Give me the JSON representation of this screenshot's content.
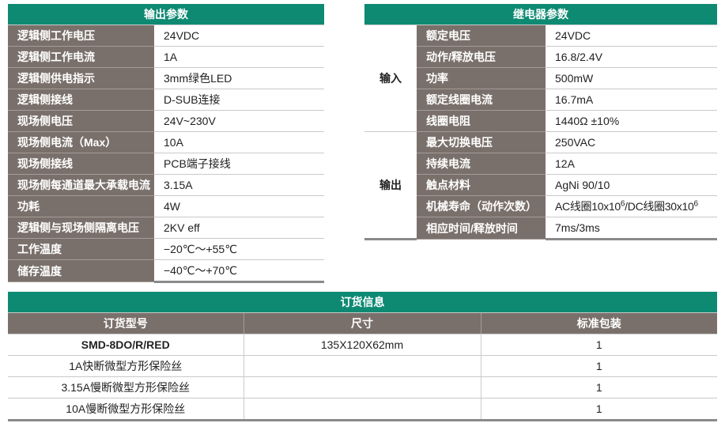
{
  "output_params": {
    "title": "输出参数",
    "rows": [
      {
        "label": "逻辑侧工作电压",
        "value": "24VDC"
      },
      {
        "label": "逻辑侧工作电流",
        "value": "1A"
      },
      {
        "label": "逻辑侧供电指示",
        "value": "3mm绿色LED"
      },
      {
        "label": "逻辑侧接线",
        "value": "D-SUB连接"
      },
      {
        "label": "现场侧电压",
        "value": "24V~230V"
      },
      {
        "label": "现场侧电流（Max）",
        "value": "10A"
      },
      {
        "label": "现场侧接线",
        "value": "PCB端子接线"
      },
      {
        "label": "现场侧每通道最大承载电流",
        "value": "3.15A"
      },
      {
        "label": "功耗",
        "value": "4W"
      },
      {
        "label": "逻辑侧与现场侧隔离电压",
        "value": "2KV eff"
      },
      {
        "label": "工作温度",
        "value": "−20℃～+55℃"
      },
      {
        "label": "储存温度",
        "value": "−40℃～+70℃"
      }
    ]
  },
  "relay_params": {
    "title": "继电器参数",
    "groups": [
      {
        "name": "输入",
        "rows": [
          {
            "label": "额定电压",
            "value": "24VDC"
          },
          {
            "label": "动作/释放电压",
            "value": "16.8/2.4V"
          },
          {
            "label": "功率",
            "value": "500mW"
          },
          {
            "label": "额定线圈电流",
            "value": "16.7mA"
          },
          {
            "label": "线圈电阻",
            "value": "1440Ω ±10%"
          }
        ]
      },
      {
        "name": "输出",
        "rows": [
          {
            "label": "最大切换电压",
            "value": "250VAC"
          },
          {
            "label": "持续电流",
            "value": "12A"
          },
          {
            "label": "触点材料",
            "value": "AgNi 90/10"
          },
          {
            "label": "机械寿命（动作次数）",
            "value_parts": [
              "AC线圈10x10",
              "6",
              "/DC线圈30x10",
              "6"
            ]
          },
          {
            "label": "相应时间/释放时间",
            "value": "7ms/3ms"
          }
        ]
      }
    ]
  },
  "order_info": {
    "title": "订货信息",
    "columns": [
      "订货型号",
      "尺寸",
      "标准包装"
    ],
    "rows": [
      [
        "SMD-8DO/R/RED",
        "135X120X62mm",
        "1"
      ],
      [
        "1A快断微型方形保险丝",
        "",
        "1"
      ],
      [
        "3.15A慢断微型方形保险丝",
        "",
        "1"
      ],
      [
        "10A慢断微型方形保险丝",
        "",
        "1"
      ]
    ]
  }
}
